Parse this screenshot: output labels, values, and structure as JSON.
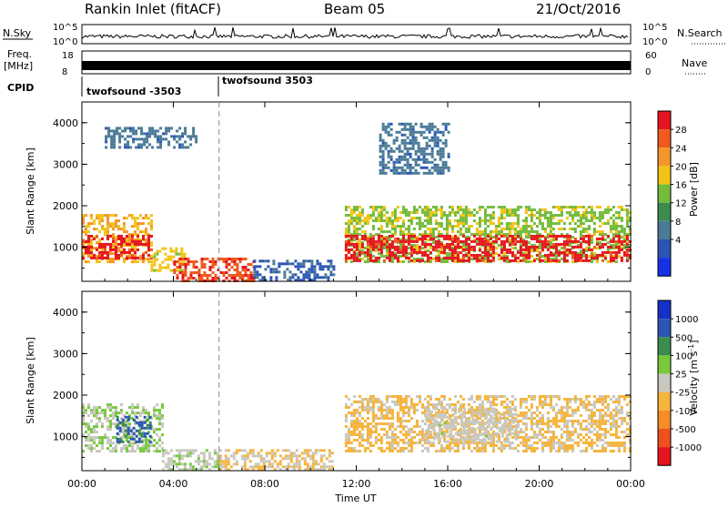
{
  "header": {
    "station": "Rankin Inlet (fitACF)",
    "beam": "Beam 05",
    "date": "21/Oct/2016"
  },
  "sky_panel": {
    "left_label": "N.Sky",
    "right_label": "N.Search",
    "left_ticks": [
      "10^5",
      "10^0"
    ],
    "right_ticks": [
      "10^5",
      "10^0"
    ]
  },
  "freq_panel": {
    "left_label": "Freq.",
    "left_unit": "[MHz]",
    "left_ticks": [
      "18",
      "8"
    ],
    "right_label": "Nave",
    "right_ticks": [
      "60",
      "0"
    ]
  },
  "cpid": {
    "label": "CPID",
    "segments": [
      {
        "name": "twofsound -3503",
        "start_hour": 0,
        "end_hour": 6
      },
      {
        "name": "twofsound 3503",
        "start_hour": 6,
        "end_hour": 24
      }
    ]
  },
  "time_axis": {
    "ticks": [
      "00:00",
      "04:00",
      "08:00",
      "12:00",
      "16:00",
      "20:00",
      "00:00"
    ],
    "label": "Time UT"
  },
  "chart_data": [
    {
      "type": "heatmap",
      "quantity": "Power",
      "xlabel": "Time UT",
      "ylabel": "Slant Range [km]",
      "x_range_hours": [
        0,
        24
      ],
      "ylim": [
        180,
        4500
      ],
      "y_ticks": [
        1000,
        2000,
        3000,
        4000
      ],
      "colorbar": {
        "label": "Power [dB]",
        "ticks": [
          "28",
          "24",
          "20",
          "16",
          "12",
          "8",
          "4"
        ],
        "range": [
          0,
          30
        ],
        "colors": [
          "#1432e6",
          "#2a55b4",
          "#4a7a96",
          "#3c8c50",
          "#73bc3c",
          "#f2c418",
          "#f5962a",
          "#f05a1e",
          "#e6141e"
        ]
      },
      "regions": [
        {
          "t": [
            0,
            3.0
          ],
          "range": [
            650,
            1800
          ],
          "value": 20
        },
        {
          "t": [
            0,
            3.0
          ],
          "range": [
            750,
            1300
          ],
          "value": 28
        },
        {
          "t": [
            3.0,
            4.5
          ],
          "range": [
            450,
            1000
          ],
          "value": 18
        },
        {
          "t": [
            4.0,
            7.5
          ],
          "range": [
            200,
            750
          ],
          "value": 26
        },
        {
          "t": [
            7.5,
            11.0
          ],
          "range": [
            200,
            700
          ],
          "value": 6
        },
        {
          "t": [
            11.5,
            24
          ],
          "range": [
            650,
            2000
          ],
          "value": 16
        },
        {
          "t": [
            11.5,
            24
          ],
          "range": [
            700,
            1300
          ],
          "value": 28
        },
        {
          "t": [
            13.0,
            16.0
          ],
          "range": [
            2800,
            4000
          ],
          "value": 8
        },
        {
          "t": [
            1.0,
            5.0
          ],
          "range": [
            3400,
            3900
          ],
          "value": 8
        }
      ]
    },
    {
      "type": "heatmap",
      "quantity": "Velocity",
      "xlabel": "Time UT",
      "ylabel": "Slant Range [km]",
      "x_range_hours": [
        0,
        24
      ],
      "ylim": [
        180,
        4500
      ],
      "y_ticks": [
        1000,
        2000,
        3000,
        4000
      ],
      "colorbar": {
        "label": "Velocity [m s^-1]",
        "ticks": [
          "1000",
          "500",
          "100",
          "25",
          "-25",
          "-100",
          "-500",
          "-1000"
        ],
        "range": [
          -1000,
          1000
        ],
        "colors": [
          "#e6141e",
          "#f0501e",
          "#f58c28",
          "#f5b43c",
          "#c8c8c0",
          "#78c83c",
          "#3c8c50",
          "#2a55b4",
          "#1432c8"
        ]
      },
      "regions": [
        {
          "t": [
            0,
            3.5
          ],
          "range": [
            650,
            1800
          ],
          "value": 100
        },
        {
          "t": [
            1.5,
            3.0
          ],
          "range": [
            900,
            1500
          ],
          "value": 600
        },
        {
          "t": [
            3.5,
            6.0
          ],
          "range": [
            200,
            700
          ],
          "value": 60
        },
        {
          "t": [
            6.0,
            11.0
          ],
          "range": [
            200,
            700
          ],
          "value": -120
        },
        {
          "t": [
            11.5,
            24
          ],
          "range": [
            650,
            2000
          ],
          "value": -150
        },
        {
          "t": [
            15.0,
            19.0
          ],
          "range": [
            900,
            1700
          ],
          "value": 0
        }
      ]
    }
  ]
}
